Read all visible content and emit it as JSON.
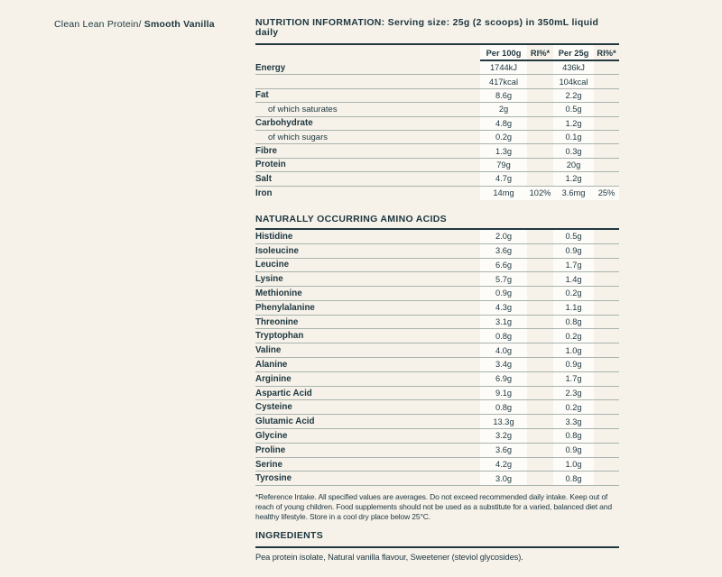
{
  "colors": {
    "background": "#f6f2e9",
    "text": "#1d3640",
    "heavy_rule": "#22383f",
    "thin_rule": "#a9b3af",
    "value_band": "#fdfcf8"
  },
  "product_label": {
    "prefix": "Clean Lean Protein/ ",
    "variant": "Smooth Vanilla"
  },
  "nutrition": {
    "title": "NUTRITION INFORMATION: Serving size: 25g (2 scoops) in 350mL liquid daily",
    "columns": [
      "Per 100g",
      "RI%*",
      "Per 25g",
      "RI%*"
    ],
    "rows": [
      {
        "label": "Energy",
        "per100": "1744kJ",
        "ri100": "",
        "per25": "436kJ",
        "ri25": ""
      },
      {
        "label": "",
        "per100": "417kcal",
        "ri100": "",
        "per25": "104kcal",
        "ri25": ""
      },
      {
        "label": "Fat",
        "per100": "8.6g",
        "ri100": "",
        "per25": "2.2g",
        "ri25": ""
      },
      {
        "label": "of which saturates",
        "indent": true,
        "per100": "2g",
        "ri100": "",
        "per25": "0.5g",
        "ri25": ""
      },
      {
        "label": "Carbohydrate",
        "per100": "4.8g",
        "ri100": "",
        "per25": "1.2g",
        "ri25": ""
      },
      {
        "label": "of which sugars",
        "indent": true,
        "per100": "0.2g",
        "ri100": "",
        "per25": "0.1g",
        "ri25": ""
      },
      {
        "label": "Fibre",
        "per100": "1.3g",
        "ri100": "",
        "per25": "0.3g",
        "ri25": ""
      },
      {
        "label": "Protein",
        "per100": "79g",
        "ri100": "",
        "per25": "20g",
        "ri25": ""
      },
      {
        "label": "Salt",
        "per100": "4.7g",
        "ri100": "",
        "per25": "1.2g",
        "ri25": ""
      },
      {
        "label": "Iron",
        "per100": "14mg",
        "ri100": "102%",
        "per25": "3.6mg",
        "ri25": "25%",
        "ri_boxed": true
      }
    ]
  },
  "amino_acids": {
    "title": "NATURALLY OCCURRING AMINO ACIDS",
    "rows": [
      {
        "label": "Histidine",
        "per100": "2.0g",
        "per25": "0.5g"
      },
      {
        "label": "Isoleucine",
        "per100": "3.6g",
        "per25": "0.9g"
      },
      {
        "label": "Leucine",
        "per100": "6.6g",
        "per25": "1.7g"
      },
      {
        "label": "Lysine",
        "per100": "5.7g",
        "per25": "1.4g"
      },
      {
        "label": "Methionine",
        "per100": "0.9g",
        "per25": "0.2g"
      },
      {
        "label": "Phenylalanine",
        "per100": "4.3g",
        "per25": "1.1g"
      },
      {
        "label": "Threonine",
        "per100": "3.1g",
        "per25": "0.8g"
      },
      {
        "label": "Tryptophan",
        "per100": "0.8g",
        "per25": "0.2g"
      },
      {
        "label": "Valine",
        "per100": "4.0g",
        "per25": "1.0g"
      },
      {
        "label": "Alanine",
        "per100": "3.4g",
        "per25": "0.9g"
      },
      {
        "label": "Arginine",
        "per100": "6.9g",
        "per25": "1.7g"
      },
      {
        "label": "Aspartic Acid",
        "per100": "9.1g",
        "per25": "2.3g"
      },
      {
        "label": "Cysteine",
        "per100": "0.8g",
        "per25": "0.2g"
      },
      {
        "label": "Glutamic Acid",
        "per100": "13.3g",
        "per25": "3.3g"
      },
      {
        "label": "Glycine",
        "per100": "3.2g",
        "per25": "0.8g"
      },
      {
        "label": "Proline",
        "per100": "3.6g",
        "per25": "0.9g"
      },
      {
        "label": "Serine",
        "per100": "4.2g",
        "per25": "1.0g"
      },
      {
        "label": "Tyrosine",
        "per100": "3.0g",
        "per25": "0.8g"
      }
    ]
  },
  "footnote": "*Reference Intake. All specified values are averages. Do not exceed recommended daily intake. Keep out of reach of young children. Food supplements should not be used as a substitute for a varied, balanced diet and healthy lifestyle. Store in a cool dry place below 25°C.",
  "ingredients": {
    "title": "INGREDIENTS",
    "text": "Pea protein isolate, Natural vanilla flavour, Sweetener (steviol glycosides)."
  }
}
